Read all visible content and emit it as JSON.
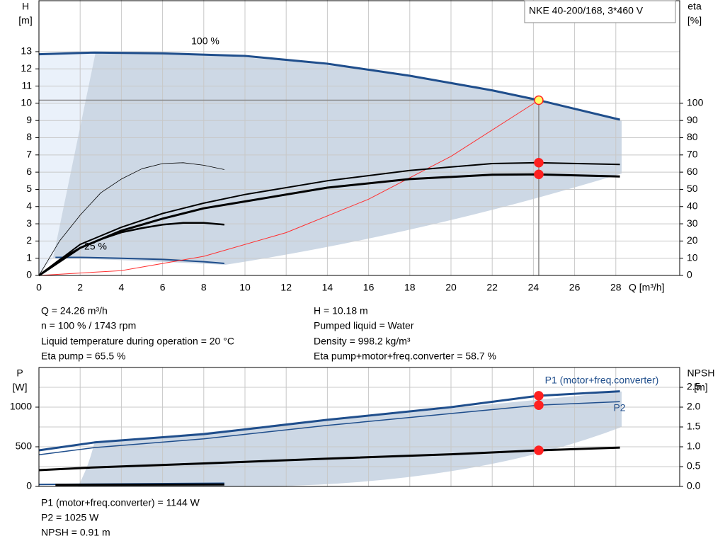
{
  "chart_data": [
    {
      "type": "line",
      "title": "NKE 40-200/168, 3*460 V",
      "xlabel": "Q [m³/h]",
      "ylabel": [
        "H",
        "[m]"
      ],
      "y2label": [
        "eta",
        "[%]"
      ],
      "xlim": [
        0,
        31.1
      ],
      "ylim": [
        0,
        16
      ],
      "y2lim": [
        0,
        160
      ],
      "xticks": [
        0,
        2,
        4,
        6,
        8,
        10,
        12,
        14,
        16,
        18,
        20,
        22,
        24,
        26,
        28
      ],
      "yticks": [
        0,
        1,
        2,
        3,
        4,
        5,
        6,
        7,
        8,
        9,
        10,
        11,
        12,
        13
      ],
      "y2ticks": [
        0,
        10,
        20,
        30,
        40,
        50,
        60,
        70,
        80,
        90,
        100
      ],
      "grid": true,
      "series": [
        {
          "color": "#1f4e8c",
          "width": 3,
          "x": [
            0,
            2.7,
            6,
            10,
            14,
            18,
            22,
            24.26,
            28.2
          ],
          "values": [
            12.85,
            12.95,
            12.9,
            12.75,
            12.3,
            11.6,
            10.75,
            10.18,
            9.05
          ]
        },
        {
          "color": "#1f4e8c",
          "width": 2,
          "x": [
            0.8,
            2,
            4,
            6,
            8,
            9
          ],
          "values": [
            1.05,
            1.05,
            1.0,
            0.93,
            0.8,
            0.7
          ]
        },
        {
          "color": "#ff3030",
          "width": 1,
          "x": [
            0,
            4,
            8,
            12,
            16,
            20,
            24.26
          ],
          "values": [
            0,
            0.28,
            1.11,
            2.49,
            4.43,
            6.92,
            10.18
          ]
        },
        {
          "color": "#000000",
          "width": 2,
          "axis": "y2",
          "x": [
            0,
            2,
            4,
            6,
            8,
            10,
            14,
            18,
            22,
            24.26,
            28.2
          ],
          "values": [
            0,
            18,
            28,
            36,
            42,
            47,
            55,
            61,
            65,
            65.5,
            64.5
          ]
        },
        {
          "color": "#000000",
          "width": 3,
          "axis": "y2",
          "x": [
            0,
            2,
            4,
            6,
            8,
            10,
            14,
            18,
            22,
            24.26,
            28.2
          ],
          "values": [
            0,
            16,
            26,
            33,
            39,
            43,
            51,
            56,
            58.5,
            58.7,
            57.5
          ]
        },
        {
          "color": "#000000",
          "width": 0.8,
          "axis": "y2",
          "x": [
            0,
            1,
            2,
            3,
            4,
            5,
            6,
            7,
            8,
            9
          ],
          "values": [
            0,
            20,
            35,
            48,
            56,
            62,
            65,
            65.5,
            64,
            61.5
          ]
        },
        {
          "color": "#000000",
          "width": 2.5,
          "axis": "y2",
          "x": [
            0,
            1,
            2,
            3,
            4,
            5,
            6,
            7,
            8,
            9
          ],
          "values": [
            0,
            9,
            16,
            21,
            25,
            27.5,
            29.5,
            30.5,
            30.5,
            29.5
          ]
        }
      ],
      "markers": [
        {
          "x": 24.26,
          "y": 10.18,
          "color": "#ffff66",
          "edge": "#ff2020"
        },
        {
          "x": 24.26,
          "y": 65.5,
          "axis": "y2",
          "color": "#ff2020"
        },
        {
          "x": 24.26,
          "y": 58.7,
          "axis": "y2",
          "color": "#ff2020"
        }
      ],
      "annotations": [
        "100 %",
        "25 %"
      ],
      "notes": [
        "Q = 24.26 m³/h",
        "H = 10.18 m",
        "n = 100 % / 1743 rpm",
        "Pumped liquid = Water",
        "Liquid temperature during operation = 20 °C",
        "Density = 998.2 kg/m³",
        "Eta pump = 65.5 %",
        "Eta pump+motor+freq.converter = 58.7 %"
      ]
    },
    {
      "type": "line",
      "ylabel": [
        "P",
        "[W]"
      ],
      "y2label": [
        "NPSH",
        "[m]"
      ],
      "xlim": [
        0,
        31.1
      ],
      "ylim": [
        0,
        1500
      ],
      "y2lim": [
        0,
        3
      ],
      "yticks": [
        0,
        500,
        1000
      ],
      "y2ticks": [
        {
          "value": 0,
          "label": "0.0"
        },
        0.5,
        {
          "value": 1,
          "label": "1.0"
        },
        1.5,
        {
          "value": 2,
          "label": "2.0"
        },
        2.5
      ],
      "grid": true,
      "series": [
        {
          "name": "P1 (motor+freq.converter)",
          "color": "#1f4e8c",
          "width": 3,
          "x": [
            0,
            2.7,
            8,
            14,
            20,
            24.26,
            28.2
          ],
          "values": [
            455,
            555,
            660,
            840,
            1000,
            1144,
            1200
          ]
        },
        {
          "name": "P2",
          "color": "#1f4e8c",
          "width": 1.5,
          "x": [
            0,
            2.7,
            8,
            14,
            20,
            24.26,
            28.2
          ],
          "values": [
            400,
            490,
            600,
            770,
            920,
            1025,
            1070
          ]
        },
        {
          "color": "#000000",
          "width": 3,
          "axis": "y2",
          "x": [
            0,
            2.7,
            8,
            14,
            20,
            24.26,
            28.2
          ],
          "values": [
            0.41,
            0.48,
            0.58,
            0.7,
            0.81,
            0.91,
            0.98
          ]
        },
        {
          "color": "#1f4e8c",
          "width": 2,
          "x": [
            0,
            9
          ],
          "values": [
            25,
            40
          ]
        },
        {
          "color": "#000000",
          "width": 3,
          "axis": "y2",
          "x": [
            0.8,
            9
          ],
          "values": [
            0.04,
            0.05
          ]
        }
      ],
      "markers": [
        {
          "x": 24.26,
          "y": 1144,
          "color": "#ff2020"
        },
        {
          "x": 24.26,
          "y": 1025,
          "color": "#ff2020"
        },
        {
          "x": 24.26,
          "y": 0.91,
          "axis": "y2",
          "color": "#ff2020"
        }
      ],
      "notes": [
        "P1 (motor+freq.converter) = 1144 W",
        "P2 = 1025 W",
        "NPSH = 0.91 m"
      ]
    }
  ]
}
